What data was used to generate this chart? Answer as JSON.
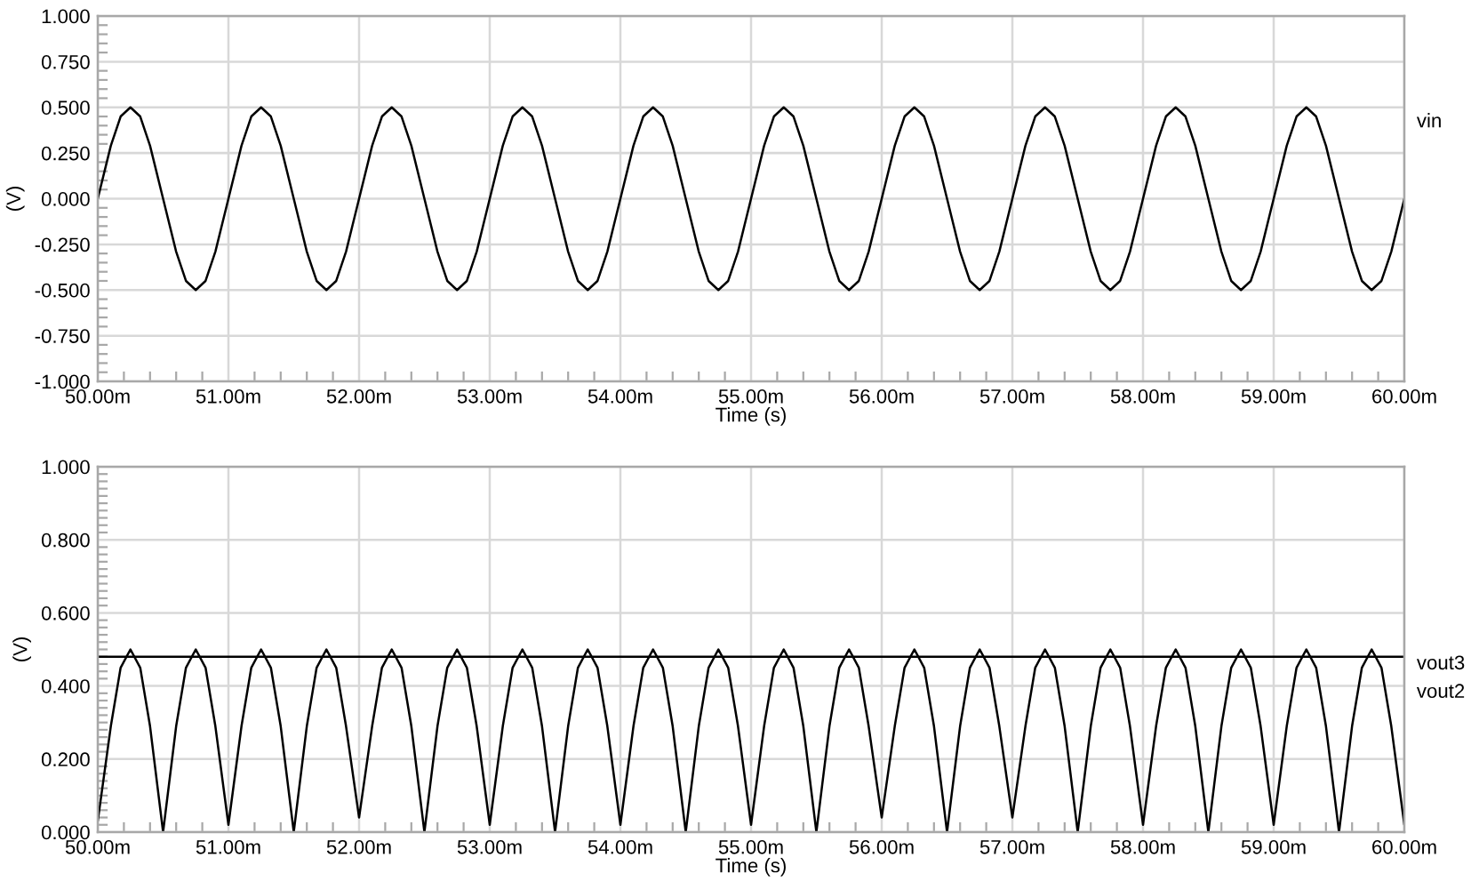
{
  "chart_data": [
    {
      "type": "line",
      "xlabel": "Time (s)",
      "ylabel": "(V)",
      "grid": true,
      "xlim": [
        50,
        60
      ],
      "xticks": [
        {
          "value": 50,
          "label": "50.00m"
        },
        {
          "value": 51,
          "label": "51.00m"
        },
        {
          "value": 52,
          "label": "52.00m"
        },
        {
          "value": 53,
          "label": "53.00m"
        },
        {
          "value": 54,
          "label": "54.00m"
        },
        {
          "value": 55,
          "label": "55.00m"
        },
        {
          "value": 56,
          "label": "56.00m"
        },
        {
          "value": 57,
          "label": "57.00m"
        },
        {
          "value": 58,
          "label": "58.00m"
        },
        {
          "value": 59,
          "label": "59.00m"
        },
        {
          "value": 60,
          "label": "60.00m"
        }
      ],
      "ylim": [
        -1,
        1
      ],
      "yticks": [
        {
          "value": -1,
          "label": "-1.000"
        },
        {
          "value": -0.75,
          "label": "-0.750"
        },
        {
          "value": -0.5,
          "label": "-0.500"
        },
        {
          "value": -0.25,
          "label": "-0.250"
        },
        {
          "value": 0,
          "label": "0.000"
        },
        {
          "value": 0.25,
          "label": "0.250"
        },
        {
          "value": 0.5,
          "label": "0.500"
        },
        {
          "value": 0.75,
          "label": "0.750"
        },
        {
          "value": 1,
          "label": "1.000"
        }
      ],
      "x": [
        50,
        50.1,
        50.175,
        50.25,
        50.325,
        50.4,
        50.5,
        50.6,
        50.675,
        50.75,
        50.825,
        50.9,
        51,
        51.1,
        51.175,
        51.25,
        51.325,
        51.4,
        51.5,
        51.6,
        51.675,
        51.75,
        51.825,
        51.9,
        52,
        52.1,
        52.175,
        52.25,
        52.325,
        52.4,
        52.5,
        52.6,
        52.675,
        52.75,
        52.825,
        52.9,
        53,
        53.1,
        53.175,
        53.25,
        53.325,
        53.4,
        53.5,
        53.6,
        53.675,
        53.75,
        53.825,
        53.9,
        54,
        54.1,
        54.175,
        54.25,
        54.325,
        54.4,
        54.5,
        54.6,
        54.675,
        54.75,
        54.825,
        54.9,
        55,
        55.1,
        55.175,
        55.25,
        55.325,
        55.4,
        55.5,
        55.6,
        55.675,
        55.75,
        55.825,
        55.9,
        56,
        56.1,
        56.175,
        56.25,
        56.325,
        56.4,
        56.5,
        56.6,
        56.675,
        56.75,
        56.825,
        56.9,
        57,
        57.1,
        57.175,
        57.25,
        57.325,
        57.4,
        57.5,
        57.6,
        57.675,
        57.75,
        57.825,
        57.9,
        58,
        58.1,
        58.175,
        58.25,
        58.325,
        58.4,
        58.5,
        58.6,
        58.675,
        58.75,
        58.825,
        58.9,
        59,
        59.1,
        59.175,
        59.25,
        59.325,
        59.4,
        59.5,
        59.6,
        59.675,
        59.75,
        59.825,
        59.9,
        60
      ],
      "series": [
        {
          "name": "vin",
          "color": "#000000",
          "values": [
            0,
            0.29,
            0.45,
            0.5,
            0.45,
            0.29,
            0,
            -0.29,
            -0.45,
            -0.5,
            -0.45,
            -0.29,
            0,
            0.29,
            0.45,
            0.5,
            0.45,
            0.29,
            0,
            -0.29,
            -0.45,
            -0.5,
            -0.45,
            -0.29,
            0,
            0.29,
            0.45,
            0.5,
            0.45,
            0.29,
            0,
            -0.29,
            -0.45,
            -0.5,
            -0.45,
            -0.29,
            0,
            0.29,
            0.45,
            0.5,
            0.45,
            0.29,
            0,
            -0.29,
            -0.45,
            -0.5,
            -0.45,
            -0.29,
            0,
            0.29,
            0.45,
            0.5,
            0.45,
            0.29,
            0,
            -0.29,
            -0.45,
            -0.5,
            -0.45,
            -0.29,
            0,
            0.29,
            0.45,
            0.5,
            0.45,
            0.29,
            0,
            -0.29,
            -0.45,
            -0.5,
            -0.45,
            -0.29,
            0,
            0.29,
            0.45,
            0.5,
            0.45,
            0.29,
            0,
            -0.29,
            -0.45,
            -0.5,
            -0.45,
            -0.29,
            0,
            0.29,
            0.45,
            0.5,
            0.45,
            0.29,
            0,
            -0.29,
            -0.45,
            -0.5,
            -0.45,
            -0.29,
            0,
            0.29,
            0.45,
            0.5,
            0.45,
            0.29,
            0,
            -0.29,
            -0.45,
            -0.5,
            -0.45,
            -0.29,
            0,
            0.29,
            0.45,
            0.5,
            0.45,
            0.29,
            0,
            -0.29,
            -0.45,
            -0.5,
            -0.45,
            -0.29,
            0
          ]
        }
      ]
    },
    {
      "type": "line",
      "xlabel": "Time (s)",
      "ylabel": "(V)",
      "grid": true,
      "xlim": [
        50,
        60
      ],
      "xticks": [
        {
          "value": 50,
          "label": "50.00m"
        },
        {
          "value": 51,
          "label": "51.00m"
        },
        {
          "value": 52,
          "label": "52.00m"
        },
        {
          "value": 53,
          "label": "53.00m"
        },
        {
          "value": 54,
          "label": "54.00m"
        },
        {
          "value": 55,
          "label": "55.00m"
        },
        {
          "value": 56,
          "label": "56.00m"
        },
        {
          "value": 57,
          "label": "57.00m"
        },
        {
          "value": 58,
          "label": "58.00m"
        },
        {
          "value": 59,
          "label": "59.00m"
        },
        {
          "value": 60,
          "label": "60.00m"
        }
      ],
      "ylim": [
        0,
        1
      ],
      "yticks": [
        {
          "value": 0,
          "label": "0.000"
        },
        {
          "value": 0.2,
          "label": "0.200"
        },
        {
          "value": 0.4,
          "label": "0.400"
        },
        {
          "value": 0.6,
          "label": "0.600"
        },
        {
          "value": 0.8,
          "label": "0.800"
        },
        {
          "value": 1,
          "label": "1.000"
        }
      ],
      "x": [
        50,
        50.1,
        50.175,
        50.25,
        50.325,
        50.4,
        50.5,
        50.6,
        50.675,
        50.75,
        50.825,
        50.9,
        51,
        51.1,
        51.175,
        51.25,
        51.325,
        51.4,
        51.5,
        51.6,
        51.675,
        51.75,
        51.825,
        51.9,
        52,
        52.1,
        52.175,
        52.25,
        52.325,
        52.4,
        52.5,
        52.6,
        52.675,
        52.75,
        52.825,
        52.9,
        53,
        53.1,
        53.175,
        53.25,
        53.325,
        53.4,
        53.5,
        53.6,
        53.675,
        53.75,
        53.825,
        53.9,
        54,
        54.1,
        54.175,
        54.25,
        54.325,
        54.4,
        54.5,
        54.6,
        54.675,
        54.75,
        54.825,
        54.9,
        55,
        55.1,
        55.175,
        55.25,
        55.325,
        55.4,
        55.5,
        55.6,
        55.675,
        55.75,
        55.825,
        55.9,
        56,
        56.1,
        56.175,
        56.25,
        56.325,
        56.4,
        56.5,
        56.6,
        56.675,
        56.75,
        56.825,
        56.9,
        57,
        57.1,
        57.175,
        57.25,
        57.325,
        57.4,
        57.5,
        57.6,
        57.675,
        57.75,
        57.825,
        57.9,
        58,
        58.1,
        58.175,
        58.25,
        58.325,
        58.4,
        58.5,
        58.6,
        58.675,
        58.75,
        58.825,
        58.9,
        59,
        59.1,
        59.175,
        59.25,
        59.325,
        59.4,
        59.5,
        59.6,
        59.675,
        59.75,
        59.825,
        59.9,
        60
      ],
      "series": [
        {
          "name": "vout3",
          "color": "#000000",
          "x": [
            50,
            60
          ],
          "values": [
            0.48,
            0.48
          ]
        },
        {
          "name": "vout2",
          "color": "#000000",
          "values": [
            0.03,
            0.29,
            0.45,
            0.5,
            0.45,
            0.29,
            0,
            0.29,
            0.45,
            0.5,
            0.45,
            0.29,
            0.02,
            0.29,
            0.45,
            0.5,
            0.45,
            0.29,
            0,
            0.29,
            0.45,
            0.5,
            0.45,
            0.29,
            0.04,
            0.29,
            0.45,
            0.5,
            0.45,
            0.29,
            0,
            0.29,
            0.45,
            0.5,
            0.45,
            0.29,
            0.02,
            0.29,
            0.45,
            0.5,
            0.45,
            0.29,
            0,
            0.29,
            0.45,
            0.5,
            0.45,
            0.29,
            0.02,
            0.29,
            0.45,
            0.5,
            0.45,
            0.29,
            0,
            0.29,
            0.45,
            0.5,
            0.45,
            0.29,
            0.02,
            0.29,
            0.45,
            0.5,
            0.45,
            0.29,
            0,
            0.29,
            0.45,
            0.5,
            0.45,
            0.29,
            0.04,
            0.29,
            0.45,
            0.5,
            0.45,
            0.29,
            0,
            0.29,
            0.45,
            0.5,
            0.45,
            0.29,
            0.04,
            0.29,
            0.45,
            0.5,
            0.45,
            0.29,
            0,
            0.29,
            0.45,
            0.5,
            0.45,
            0.29,
            0.02,
            0.29,
            0.45,
            0.5,
            0.45,
            0.29,
            0,
            0.29,
            0.45,
            0.5,
            0.45,
            0.29,
            0.02,
            0.29,
            0.45,
            0.5,
            0.45,
            0.29,
            0,
            0.29,
            0.45,
            0.5,
            0.45,
            0.29,
            0.02
          ]
        }
      ]
    }
  ]
}
